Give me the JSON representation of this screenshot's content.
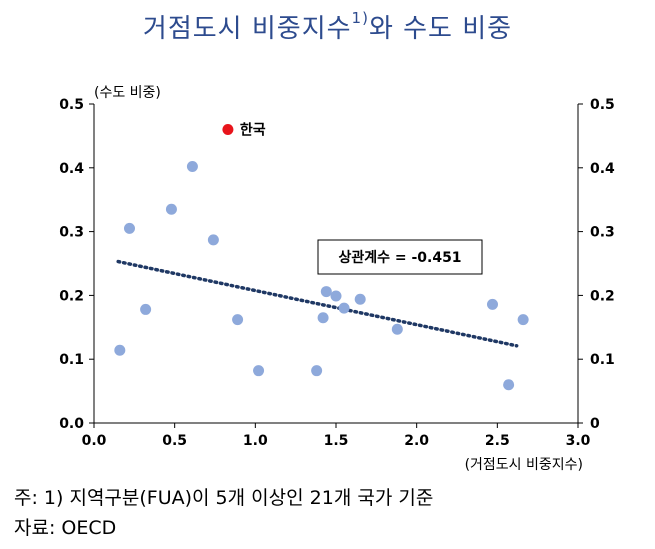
{
  "chart_data": {
    "type": "scatter",
    "title_main": "거점도시 비중지수",
    "title_sup": "1)",
    "title_tail": "와 수도 비중",
    "ylabel": "(수도 비중)",
    "xlabel": "(거점도시 비중지수)",
    "xlim": [
      0.0,
      3.0
    ],
    "ylim": [
      0.0,
      0.5
    ],
    "x_ticks": [
      "0.0",
      "0.5",
      "1.0",
      "1.5",
      "2.0",
      "2.5",
      "3.0"
    ],
    "y_ticks_left": [
      "0.0",
      "0.1",
      "0.2",
      "0.3",
      "0.4",
      "0.5"
    ],
    "y_ticks_right": [
      "0",
      "0.1",
      "0.2",
      "0.3",
      "0.4",
      "0.5"
    ],
    "grid": false,
    "points": [
      {
        "x": 0.16,
        "y": 0.114
      },
      {
        "x": 0.22,
        "y": 0.305
      },
      {
        "x": 0.32,
        "y": 0.178
      },
      {
        "x": 0.48,
        "y": 0.335
      },
      {
        "x": 0.61,
        "y": 0.402
      },
      {
        "x": 0.74,
        "y": 0.287
      },
      {
        "x": 0.89,
        "y": 0.162
      },
      {
        "x": 1.02,
        "y": 0.082
      },
      {
        "x": 1.38,
        "y": 0.082
      },
      {
        "x": 1.42,
        "y": 0.165
      },
      {
        "x": 1.44,
        "y": 0.206
      },
      {
        "x": 1.5,
        "y": 0.199
      },
      {
        "x": 1.55,
        "y": 0.18
      },
      {
        "x": 1.65,
        "y": 0.194
      },
      {
        "x": 1.88,
        "y": 0.147
      },
      {
        "x": 2.47,
        "y": 0.186
      },
      {
        "x": 2.57,
        "y": 0.06
      },
      {
        "x": 2.66,
        "y": 0.162
      }
    ],
    "highlight": {
      "label": "한국",
      "x": 0.83,
      "y": 0.46,
      "color": "#e8141b"
    },
    "trendline": {
      "x0": 0.15,
      "y0": 0.253,
      "x1": 2.62,
      "y1": 0.121
    },
    "annotation": "상관계수 = -0.451",
    "point_color": "#8ea9db",
    "trend_color": "#1f3864"
  },
  "footnotes": {
    "note": "주: 1) 지역구분(FUA)이 5개 이상인 21개 국가 기준",
    "source": "자료: OECD"
  }
}
